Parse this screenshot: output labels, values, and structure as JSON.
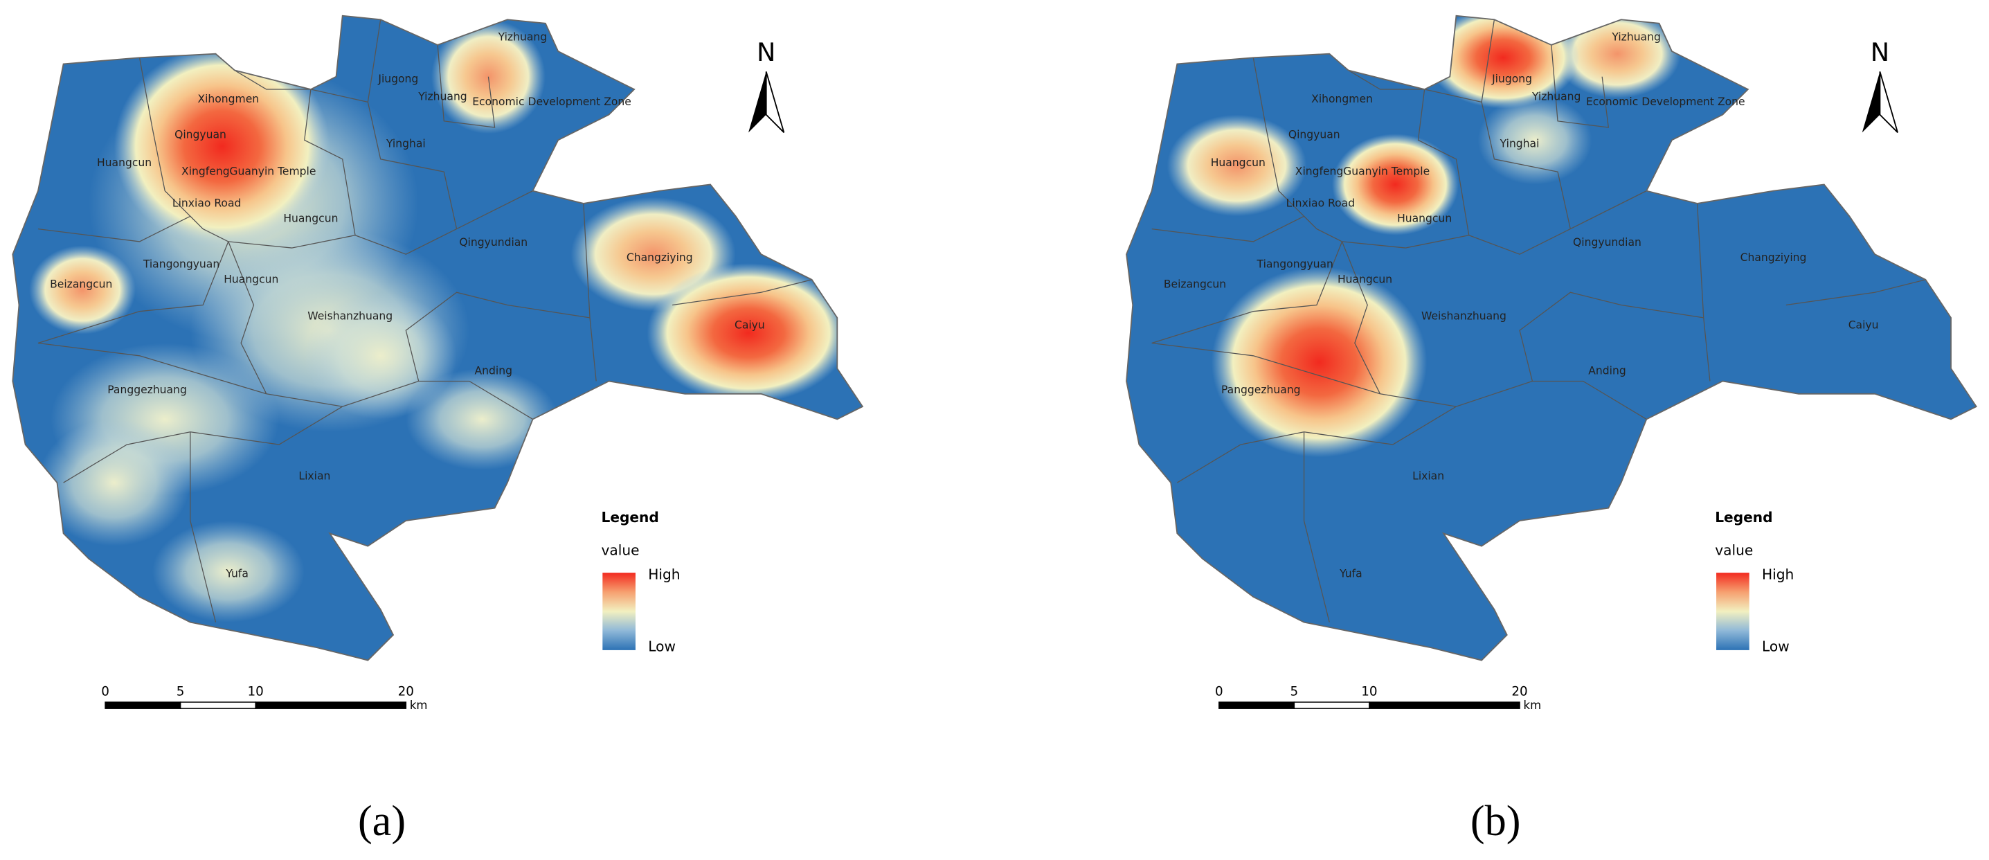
{
  "panels": [
    {
      "caption": "(a)",
      "labels": [
        "Xihongmen",
        "Qingyuan",
        "Huangcun",
        "Xingfeng",
        "Guanyin Temple",
        "Linxiao Road",
        "Huangcun",
        "Tiangongyuan",
        "Huangcun",
        "Beizangcun",
        "Weishanzhuang",
        "Panggezhuang",
        "Anding",
        "Lixian",
        "Yufa",
        "Jiugong",
        "Yizhuang",
        "Yizhuang",
        "Economic Development Zone",
        "Yinghai",
        "Qingyundian",
        "Changziying",
        "Caiyu"
      ],
      "north": "N",
      "legend": {
        "title": "Legend",
        "field": "value",
        "high": "High",
        "low": "Low"
      },
      "scale": {
        "ticks": [
          0,
          5,
          10,
          20
        ],
        "unit": "km"
      }
    },
    {
      "caption": "(b)",
      "labels": [
        "Xihongmen",
        "Qingyuan",
        "Huangcun",
        "Xingfeng",
        "Guanyin Temple",
        "Linxiao Road",
        "Huangcun",
        "Tiangongyuan",
        "Huangcun",
        "Beizangcun",
        "Weishanzhuang",
        "Panggezhuang",
        "Anding",
        "Lixian",
        "Yufa",
        "Jiugong",
        "Yizhuang",
        "Yizhuang",
        "Economic Development Zone",
        "Yinghai",
        "Qingyundian",
        "Changziying",
        "Caiyu"
      ],
      "north": "N",
      "legend": {
        "title": "Legend",
        "field": "value",
        "high": "High",
        "low": "Low"
      },
      "scale": {
        "ticks": [
          0,
          5,
          10,
          20
        ],
        "unit": "km"
      }
    }
  ]
}
